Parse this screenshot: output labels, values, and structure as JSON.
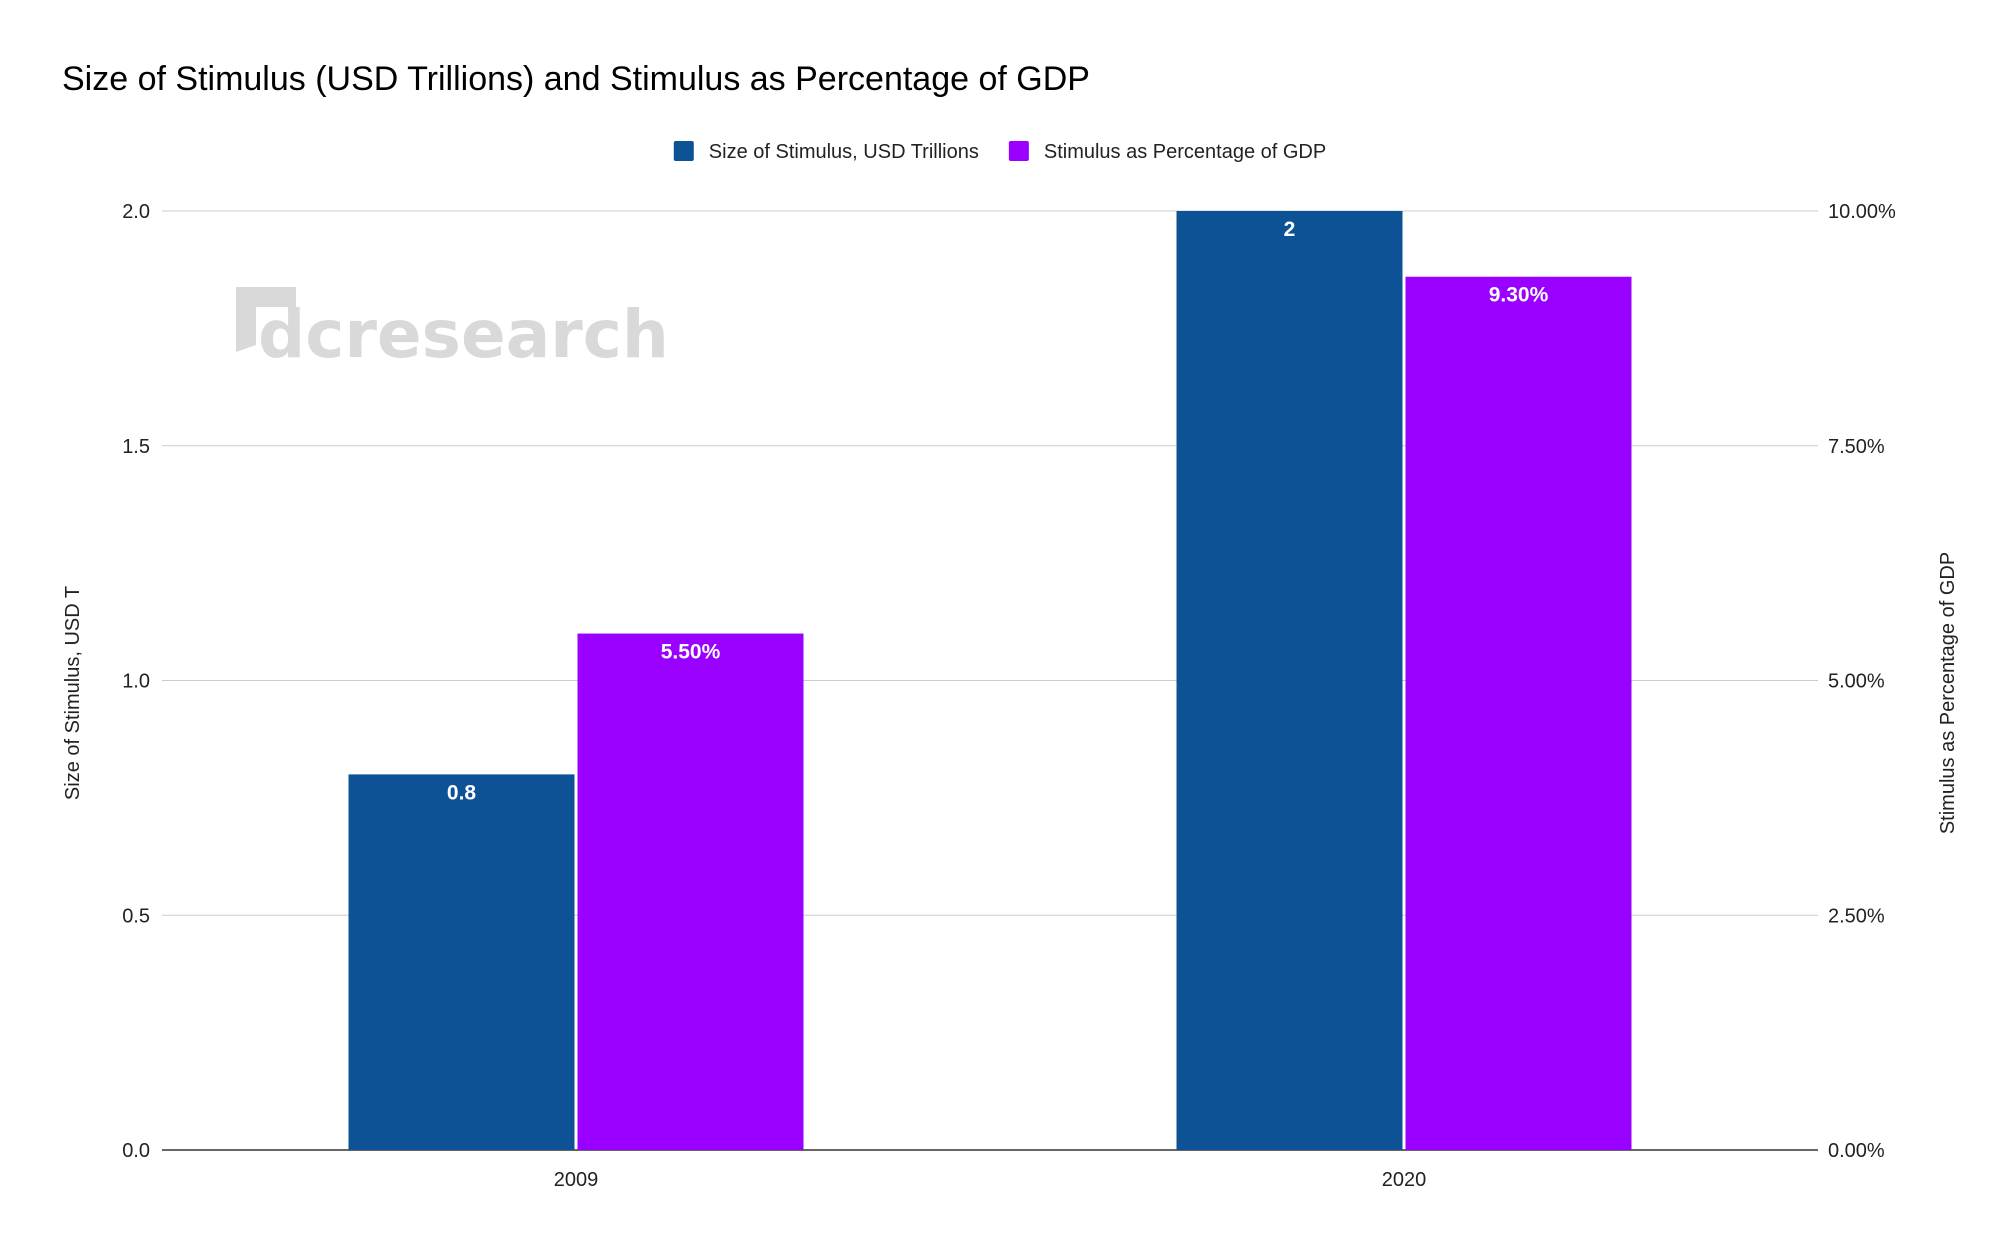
{
  "chart_data": {
    "type": "bar",
    "title": "Size of Stimulus (USD Trillions) and Stimulus as Percentage of GDP",
    "categories": [
      "2009",
      "2020"
    ],
    "series": [
      {
        "name": "Size of Stimulus, USD Trillions",
        "values": [
          0.8,
          2
        ],
        "data_labels": [
          "0.8",
          "2"
        ],
        "color": "#0e5296",
        "axis": "left"
      },
      {
        "name": "Stimulus as Percentage of GDP",
        "values": [
          5.5,
          9.3
        ],
        "data_labels": [
          "5.50%",
          "9.30%"
        ],
        "color": "#9900ff",
        "axis": "right"
      }
    ],
    "y_left": {
      "label": "Size of Stimulus, USD T",
      "range": [
        0,
        2
      ],
      "ticks": [
        "0.0",
        "0.5",
        "1.0",
        "1.5",
        "2.0"
      ]
    },
    "y_right": {
      "label": "Stimulus as Percentage of GDP",
      "range": [
        0,
        10
      ],
      "ticks": [
        "0.00%",
        "2.50%",
        "5.00%",
        "7.50%",
        "10.00%"
      ]
    },
    "grid": true,
    "legend_position": "top-center",
    "watermark": "dcresearch"
  }
}
